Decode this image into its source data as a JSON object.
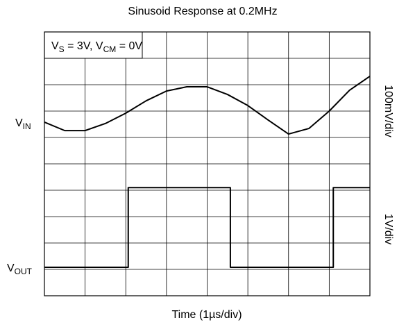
{
  "chart_data": {
    "type": "line",
    "title": "Sinusoid Response at 0.2MHz",
    "x_label": "Time (1µs/div)",
    "annotation": [
      "V",
      "S",
      " = 3V, V",
      "CM",
      " = 0V"
    ],
    "xlim": [
      0,
      8
    ],
    "ylim": [
      0,
      10
    ],
    "xticks": [
      0,
      1,
      2,
      3,
      4,
      5,
      6,
      7,
      8
    ],
    "yticks": [
      0,
      1,
      2,
      3,
      4,
      5,
      6,
      7,
      8,
      9,
      10
    ],
    "grid": true,
    "series": [
      {
        "name": [
          "V",
          "IN"
        ],
        "scale": "100mV/div",
        "color": "#000000",
        "x": [
          0,
          0.5,
          1,
          1.5,
          2,
          2.5,
          3,
          3.5,
          4,
          4.5,
          5,
          5.5,
          6,
          6.5,
          7,
          7.5,
          8
        ],
        "values": [
          6.58,
          6.26,
          6.26,
          6.53,
          6.92,
          7.39,
          7.76,
          7.92,
          7.92,
          7.63,
          7.21,
          6.66,
          6.13,
          6.34,
          7.0,
          7.79,
          8.32
        ]
      },
      {
        "name": [
          "V",
          "OUT"
        ],
        "scale": "1V/div",
        "color": "#000000",
        "x": [
          0,
          2.06,
          2.06,
          4.57,
          4.57,
          7.1,
          7.1,
          8
        ],
        "values": [
          1.08,
          1.08,
          4.1,
          4.1,
          1.08,
          1.08,
          4.1,
          4.1
        ]
      }
    ]
  }
}
